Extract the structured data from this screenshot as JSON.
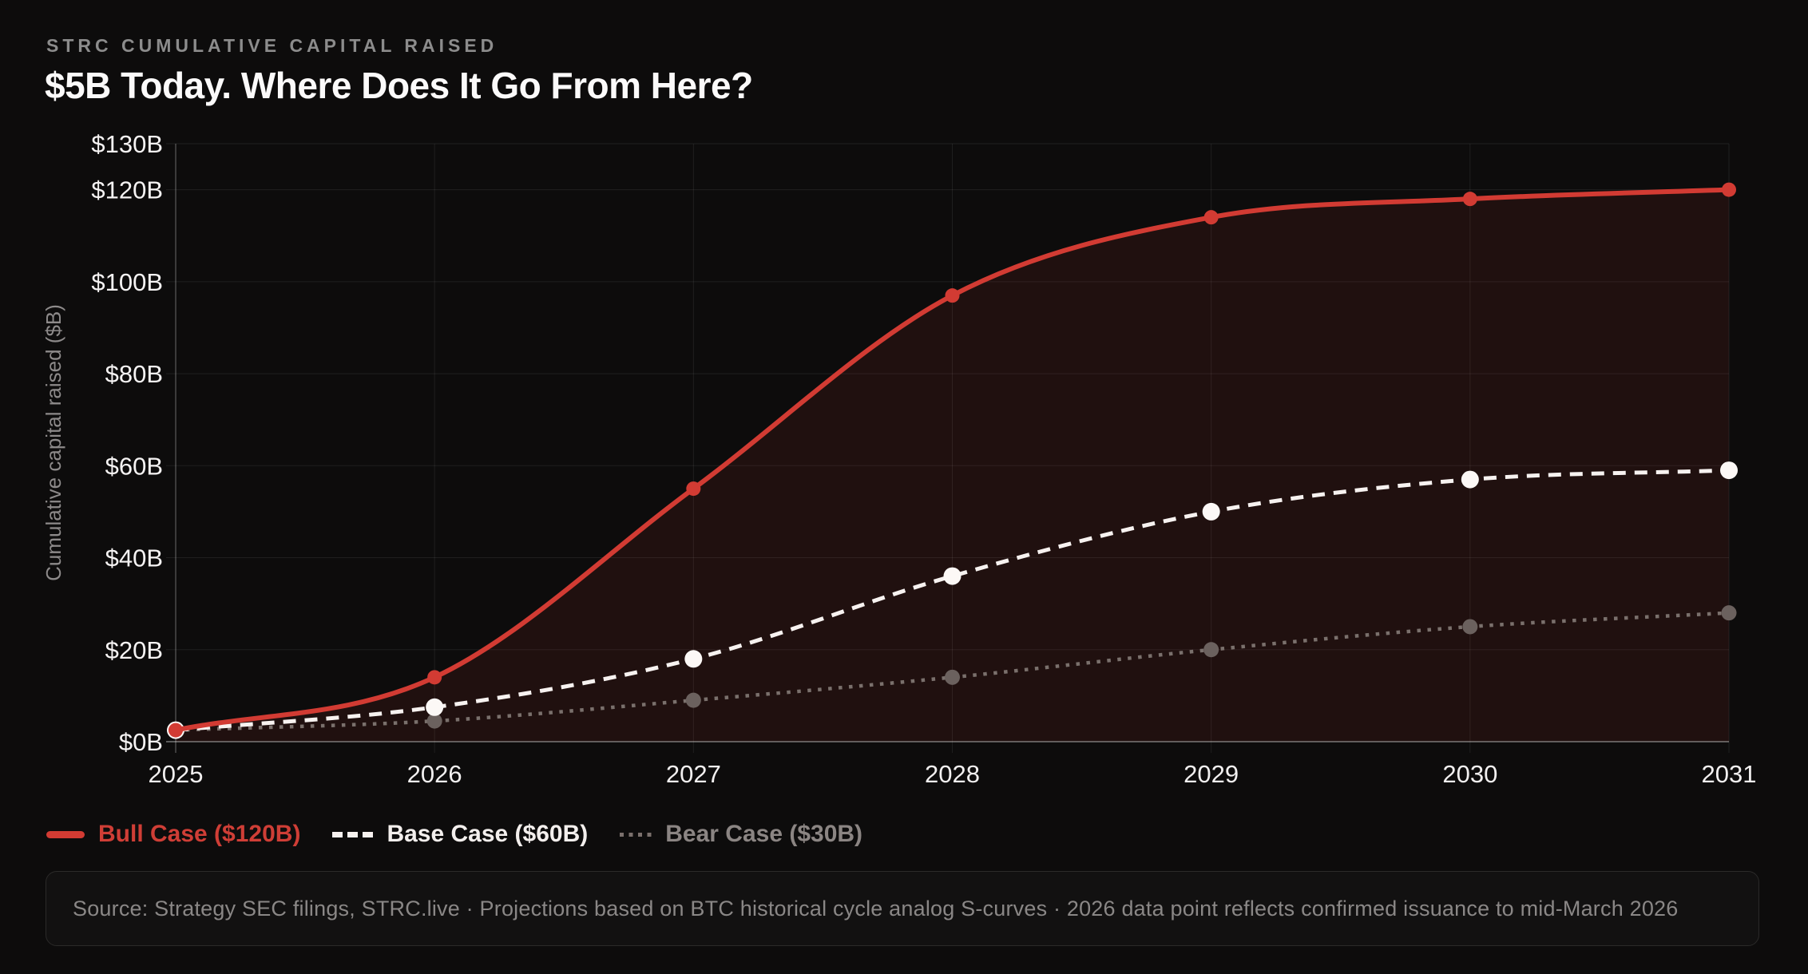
{
  "header": {
    "kicker": "STRC CUMULATIVE CAPITAL RAISED",
    "title": "$5B Today. Where Does It Go From Here?"
  },
  "chart_data": {
    "type": "line",
    "title": "$5B Today. Where Does It Go From Here?",
    "subtitle": "STRC CUMULATIVE CAPITAL RAISED",
    "x_labels": [
      "2025",
      "2026",
      "2027",
      "2028",
      "2029",
      "2030",
      "2031"
    ],
    "ylabel": "Cumulative capital raised ($B)",
    "ylim": [
      0,
      130
    ],
    "yticks": [
      0,
      20,
      40,
      60,
      80,
      100,
      120,
      130
    ],
    "ytick_labels": [
      "$0B",
      "$20B",
      "$40B",
      "$60B",
      "$80B",
      "$100B",
      "$120B",
      "$130B"
    ],
    "grid": true,
    "legend_position": "bottom-left",
    "background": "#0d0c0c",
    "series": [
      {
        "id": "bull-case",
        "name": "Bull Case ($120B)",
        "style": "solid",
        "color": "#d23b33",
        "point_color": "#d23b33",
        "area_fill": "rgba(210,59,51,0.10)",
        "values": [
          2.5,
          14,
          55,
          97,
          114,
          118,
          120
        ]
      },
      {
        "id": "base-case",
        "name": "Base Case ($60B)",
        "style": "dashed",
        "color": "#f7f2f0",
        "point_color": "#fcf8f6",
        "values": [
          2.5,
          7.5,
          18,
          36,
          50,
          57,
          59
        ]
      },
      {
        "id": "bear-case",
        "name": "Bear Case ($30B)",
        "style": "dotted",
        "color": "#7a706c",
        "point_color": "#6b615e",
        "values": [
          2.5,
          4.5,
          9,
          14,
          20,
          25,
          28
        ]
      }
    ]
  },
  "footer": {
    "source": "Source: Strategy SEC filings, STRC.live · Projections based on BTC historical cycle analog S-curves · 2026 data point reflects confirmed issuance to mid-March 2026"
  }
}
